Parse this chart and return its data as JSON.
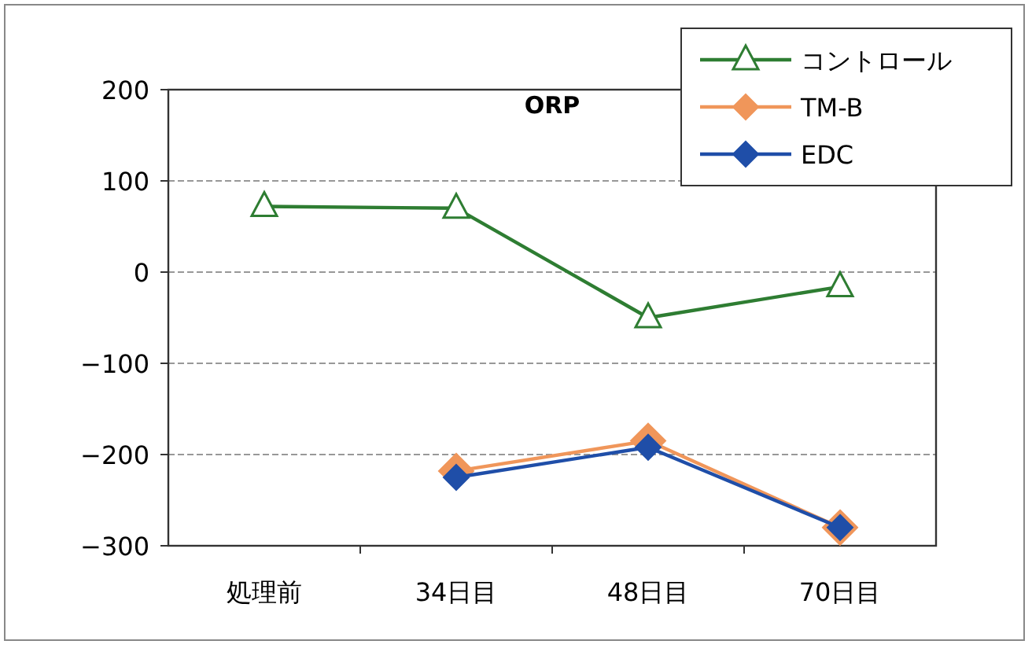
{
  "chart_data": {
    "type": "line",
    "title": "ORP",
    "categories": [
      "処理前",
      "34日目",
      "48日目",
      "70日目"
    ],
    "series": [
      {
        "name": "コントロール",
        "color": "#2e7d32",
        "marker": "triangle",
        "values": [
          72,
          70,
          -50,
          -16
        ]
      },
      {
        "name": "TM-B",
        "color": "#f0965a",
        "marker": "diamond",
        "values": [
          null,
          -218,
          -185,
          -280
        ]
      },
      {
        "name": "EDC",
        "color": "#1f4ea8",
        "marker": "diamond",
        "values": [
          null,
          -225,
          -192,
          -280
        ]
      }
    ],
    "ylim": [
      -300,
      200
    ],
    "yticks": [
      -300,
      -200,
      -100,
      0,
      100,
      200
    ],
    "grid": "y",
    "legend": "top right"
  }
}
